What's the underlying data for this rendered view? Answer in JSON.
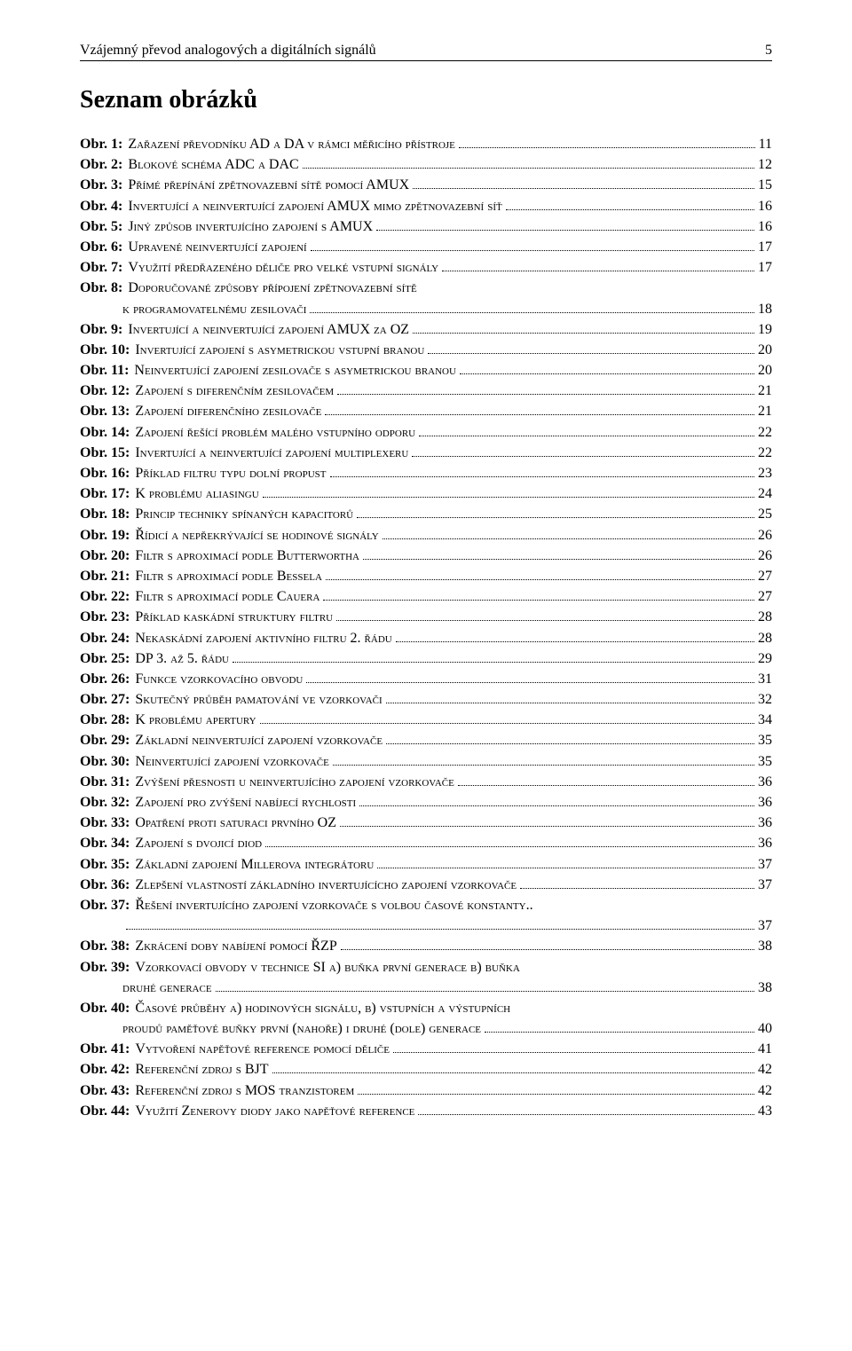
{
  "running_head": {
    "title": "Vzájemný převod analogových a digitálních signálů",
    "pageno": "5"
  },
  "section_title": "Seznam obrázků",
  "entries": [
    {
      "key": "Obr. 1:",
      "text": "Zařazení převodníku AD a DA v rámci měřicího přístroje",
      "page": "11"
    },
    {
      "key": "Obr. 2:",
      "text": "Blokové schéma ADC a DAC",
      "page": "12"
    },
    {
      "key": "Obr. 3:",
      "text": "Přímé přepínání zpětnovazební sítě pomocí AMUX",
      "page": "15"
    },
    {
      "key": "Obr. 4:",
      "text": "Invertující a neinvertující zapojení AMUX mimo zpětnovazební síť",
      "page": "16"
    },
    {
      "key": "Obr. 5:",
      "text": "Jiný způsob invertujícího zapojení s AMUX",
      "page": "16"
    },
    {
      "key": "Obr. 6:",
      "text": "Upravené neinvertující zapojení",
      "page": "17"
    },
    {
      "key": "Obr. 7:",
      "text": "Využití předřazeného děliče pro velké vstupní signály",
      "page": "17"
    },
    {
      "key": "Obr. 8:",
      "text": "Doporučované   způsoby   přípojení   zpětnovazební   sítě",
      "page": null,
      "cont": {
        "text": "k programovatelnému zesilovači",
        "page": "18"
      }
    },
    {
      "key": "Obr. 9:",
      "text": "Invertující a neinvertující zapojení AMUX za OZ",
      "page": "19"
    },
    {
      "key": "Obr. 10:",
      "text": "Invertující zapojení s asymetrickou vstupní branou",
      "page": "20"
    },
    {
      "key": "Obr. 11:",
      "text": "Neinvertující zapojení zesilovače s asymetrickou branou",
      "page": "20"
    },
    {
      "key": "Obr. 12:",
      "text": "Zapojení s diferenčním zesilovačem",
      "page": "21"
    },
    {
      "key": "Obr. 13:",
      "text": "Zapojení diferenčního zesilovače",
      "page": "21"
    },
    {
      "key": "Obr. 14:",
      "text": "Zapojení řešící problém malého vstupního odporu",
      "page": "22"
    },
    {
      "key": "Obr. 15:",
      "text": "Invertující a neinvertující zapojení multiplexeru",
      "page": "22"
    },
    {
      "key": "Obr. 16:",
      "text": "Příklad filtru typu dolní propust",
      "page": "23"
    },
    {
      "key": "Obr. 17:",
      "text": "K problému aliasingu",
      "page": "24"
    },
    {
      "key": "Obr. 18:",
      "text": "Princip techniky spínaných kapacitorů",
      "page": "25"
    },
    {
      "key": "Obr. 19:",
      "text": "Řídicí a nepřekrývající se hodinové signály",
      "page": "26"
    },
    {
      "key": "Obr. 20:",
      "text": "Filtr s aproximací podle Butterwortha",
      "page": "26"
    },
    {
      "key": "Obr. 21:",
      "text": "Filtr s aproximací podle Bessela",
      "page": "27"
    },
    {
      "key": "Obr. 22:",
      "text": "Filtr s aproximací podle Cauera",
      "page": "27"
    },
    {
      "key": "Obr. 23:",
      "text": "Příklad kaskádní struktury filtru",
      "page": "28"
    },
    {
      "key": "Obr. 24:",
      "text": "Nekaskádní zapojení aktivního filtru 2. řádu",
      "page": "28"
    },
    {
      "key": "Obr. 25:",
      "text": "DP 3. až 5. řádu",
      "page": "29"
    },
    {
      "key": "Obr. 26:",
      "text": "Funkce vzorkovacího obvodu",
      "page": "31"
    },
    {
      "key": "Obr. 27:",
      "text": "Skutečný průběh pamatování ve vzorkovači",
      "page": "32"
    },
    {
      "key": "Obr. 28:",
      "text": "K problému apertury",
      "page": "34"
    },
    {
      "key": "Obr. 29:",
      "text": "Základní neinvertující zapojení vzorkovače",
      "page": "35"
    },
    {
      "key": "Obr. 30:",
      "text": "Neinvertující zapojení vzorkovače",
      "page": "35"
    },
    {
      "key": "Obr. 31:",
      "text": "Zvýšení přesnosti u neinvertujícího zapojení vzorkovače",
      "page": "36"
    },
    {
      "key": "Obr. 32:",
      "text": "Zapojení pro zvýšení nabíjecí rychlosti",
      "page": "36"
    },
    {
      "key": "Obr. 33:",
      "text": "Opatření proti saturaci prvního OZ",
      "page": "36"
    },
    {
      "key": "Obr. 34:",
      "text": "Zapojení s dvojicí diod",
      "page": "36"
    },
    {
      "key": "Obr. 35:",
      "text": "Základní zapojení Millerova integrátoru",
      "page": "37"
    },
    {
      "key": "Obr. 36:",
      "text": "Zlepšení vlastností základního invertujícícho zapojení vzorkovače",
      "page": "37"
    },
    {
      "key": "Obr. 37:",
      "text": "Řešení invertujícího zapojení vzorkovače s volbou časové konstanty",
      "page": null,
      "tail": "..",
      "cont": {
        "text": "",
        "page": "37"
      }
    },
    {
      "key": "Obr. 38:",
      "text": "Zkrácení doby nabíjení pomocí ŘZP",
      "page": "38"
    },
    {
      "key": "Obr. 39:",
      "text": "Vzorkovací  obvody  v  technice  SI  a)  buňka  první  generace  b)  buňka",
      "page": null,
      "cont": {
        "text": "druhé generace",
        "page": "38"
      }
    },
    {
      "key": "Obr. 40:",
      "text": "Časové  průběhy  a)  hodinových  signálu,  b)  vstupních  a  výstupních",
      "page": null,
      "cont": {
        "text": "proudů paměťové buňky první (nahoře) i druhé (dole) generace",
        "page": "40"
      }
    },
    {
      "key": "Obr. 41:",
      "text": "Vytvoření napěťové reference pomocí děliče",
      "page": "41"
    },
    {
      "key": "Obr. 42:",
      "text": "Referenční zdroj s BJT",
      "page": "42"
    },
    {
      "key": "Obr. 43:",
      "text": "Referenční zdroj s MOS tranzistorem",
      "page": "42"
    },
    {
      "key": "Obr. 44:",
      "text": "Využití Zenerovy diody jako napěťové reference",
      "page": "43"
    }
  ]
}
